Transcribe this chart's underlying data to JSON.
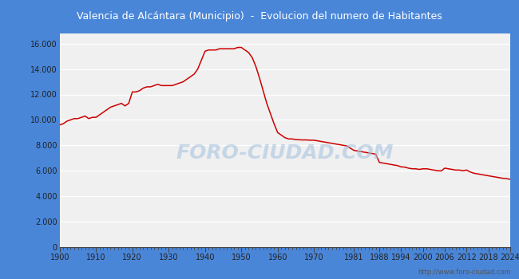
{
  "title": "Valencia de Alcántara (Municipio)  -  Evolucion del numero de Habitantes",
  "title_bg_color": "#4a86d8",
  "title_text_color": "#ffffff",
  "line_color": "#cc0000",
  "bg_color": "#4a86d8",
  "plot_bg_color": "#f0f0f0",
  "grid_color": "#ffffff",
  "watermark": "FORO-CIUDAD.COM",
  "url": "http://www.foro-ciudad.com",
  "years": [
    1900,
    1901,
    1902,
    1903,
    1904,
    1905,
    1906,
    1907,
    1908,
    1909,
    1910,
    1911,
    1912,
    1913,
    1914,
    1915,
    1916,
    1917,
    1918,
    1919,
    1920,
    1921,
    1922,
    1923,
    1924,
    1925,
    1926,
    1927,
    1928,
    1929,
    1930,
    1931,
    1932,
    1933,
    1934,
    1935,
    1936,
    1937,
    1938,
    1939,
    1940,
    1941,
    1942,
    1943,
    1944,
    1945,
    1946,
    1947,
    1948,
    1949,
    1950,
    1951,
    1952,
    1953,
    1954,
    1955,
    1956,
    1957,
    1958,
    1959,
    1960,
    1961,
    1962,
    1963,
    1964,
    1965,
    1966,
    1967,
    1968,
    1969,
    1970,
    1971,
    1972,
    1973,
    1974,
    1975,
    1976,
    1977,
    1978,
    1979,
    1981,
    1982,
    1983,
    1984,
    1985,
    1986,
    1987,
    1988,
    1989,
    1990,
    1991,
    1992,
    1993,
    1994,
    1995,
    1996,
    1997,
    1998,
    1999,
    2000,
    2001,
    2002,
    2003,
    2004,
    2005,
    2006,
    2007,
    2008,
    2009,
    2010,
    2011,
    2012,
    2013,
    2014,
    2015,
    2016,
    2017,
    2018,
    2019,
    2020,
    2021,
    2022,
    2023,
    2024
  ],
  "population": [
    9600,
    9700,
    9900,
    10000,
    10100,
    10100,
    10200,
    10300,
    10100,
    10200,
    10200,
    10400,
    10600,
    10800,
    11000,
    11100,
    11200,
    11300,
    11100,
    11300,
    12200,
    12200,
    12300,
    12500,
    12600,
    12600,
    12700,
    12800,
    12700,
    12700,
    12700,
    12700,
    12800,
    12900,
    13000,
    13200,
    13400,
    13600,
    14000,
    14700,
    15400,
    15500,
    15500,
    15500,
    15600,
    15600,
    15600,
    15600,
    15600,
    15700,
    15700,
    15500,
    15300,
    14900,
    14200,
    13300,
    12300,
    11300,
    10500,
    9700,
    9000,
    8800,
    8600,
    8500,
    8500,
    8450,
    8430,
    8420,
    8420,
    8400,
    8400,
    8350,
    8300,
    8250,
    8200,
    8150,
    8100,
    8050,
    8000,
    7950,
    7600,
    7550,
    7500,
    7450,
    7400,
    7350,
    7300,
    6650,
    6600,
    6550,
    6500,
    6450,
    6400,
    6300,
    6280,
    6200,
    6150,
    6150,
    6100,
    6150,
    6150,
    6100,
    6050,
    6000,
    5980,
    6200,
    6150,
    6100,
    6050,
    6050,
    6000,
    6050,
    5900,
    5800,
    5750,
    5700,
    5650,
    5600,
    5550,
    5500,
    5450,
    5400,
    5380,
    5320
  ],
  "xtick_labels": [
    "1900",
    "1910",
    "1920",
    "1930",
    "1940",
    "1950",
    "1960",
    "1970",
    "1981",
    "1988",
    "1994",
    "2000",
    "2006",
    "2012",
    "2018",
    "2024"
  ],
  "xtick_positions": [
    1900,
    1910,
    1920,
    1930,
    1940,
    1950,
    1960,
    1970,
    1981,
    1988,
    1994,
    2000,
    2006,
    2012,
    2018,
    2024
  ],
  "ytick_positions": [
    0,
    2000,
    4000,
    6000,
    8000,
    10000,
    12000,
    14000,
    16000
  ],
  "ytick_labels": [
    "0",
    "2.000",
    "4.000",
    "6.000",
    "8.000",
    "10.000",
    "12.000",
    "14.000",
    "16.000"
  ],
  "ylim": [
    0,
    16800
  ],
  "xlim": [
    1900,
    2024
  ]
}
